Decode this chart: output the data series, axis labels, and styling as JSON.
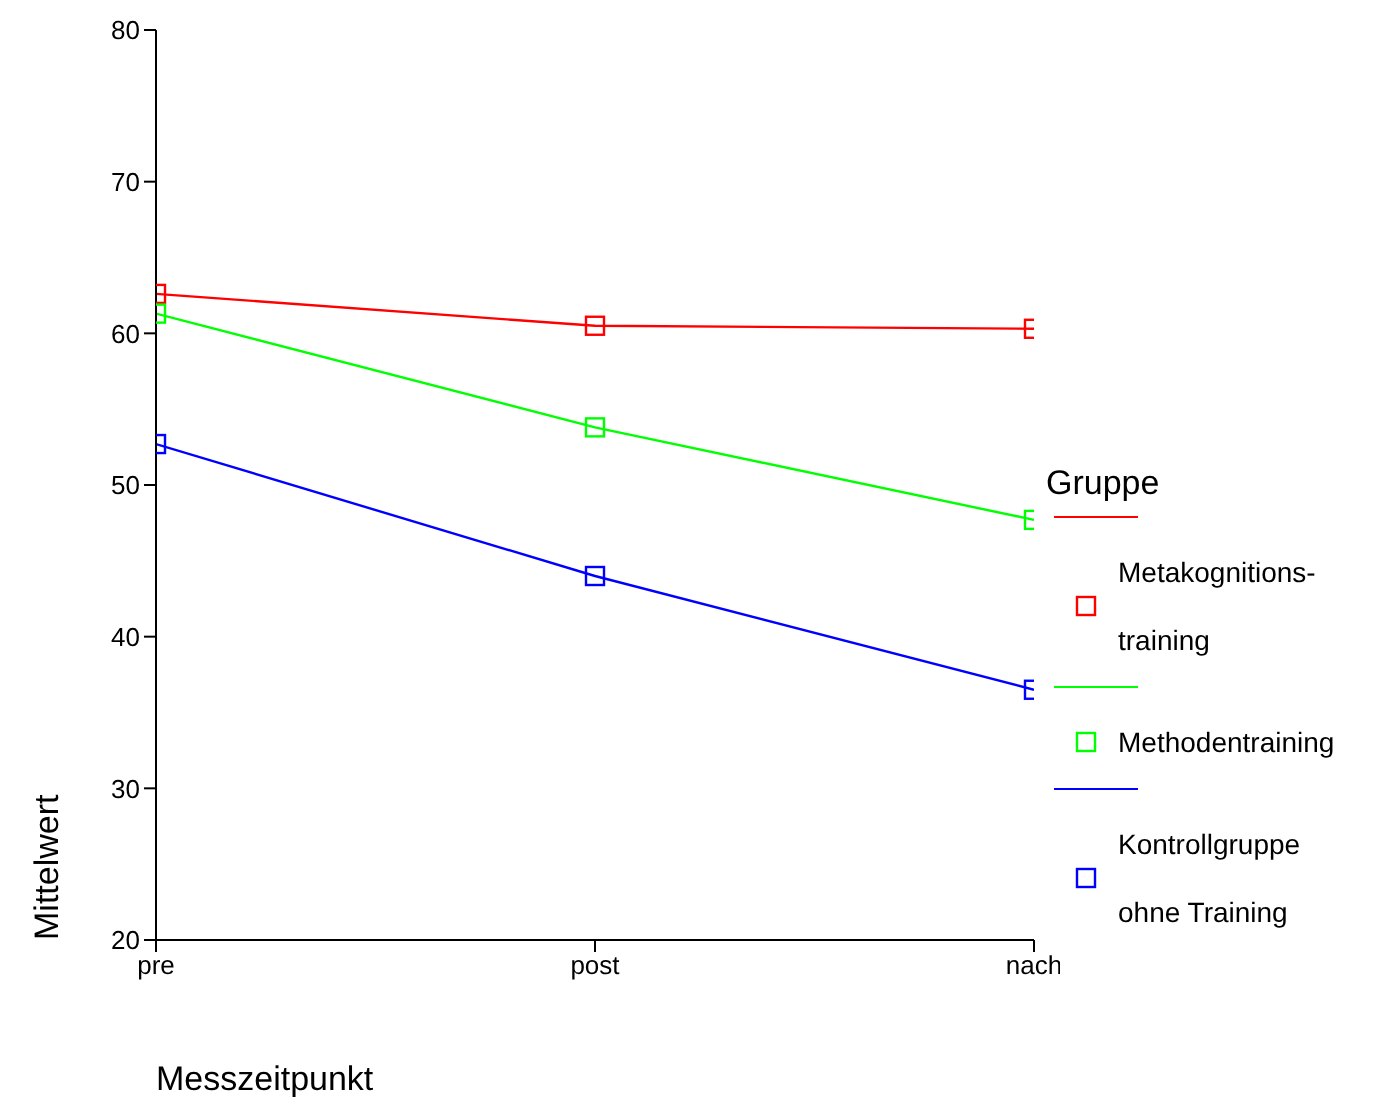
{
  "chart_data": {
    "type": "line",
    "categories": [
      "pre",
      "post",
      "nach"
    ],
    "xlabel": "Messzeitpunkt",
    "ylabel": "Mittelwert",
    "legend_title": "Gruppe",
    "ylim": [
      20,
      80
    ],
    "yticks": [
      20,
      30,
      40,
      50,
      60,
      70,
      80
    ],
    "grid": false,
    "legend": "right",
    "marker": "square",
    "line_style": "solid",
    "series": [
      {
        "name": "Metakognitions-training",
        "color": "#ff0000",
        "values": [
          62.6,
          60.5,
          60.3
        ]
      },
      {
        "name": "Methodentraining",
        "color": "#00ff00",
        "values": [
          61.3,
          53.8,
          47.7
        ]
      },
      {
        "name": "Kontrollgruppe ohne Training",
        "color": "#0000ff",
        "values": [
          52.7,
          44.0,
          36.5
        ]
      }
    ]
  }
}
